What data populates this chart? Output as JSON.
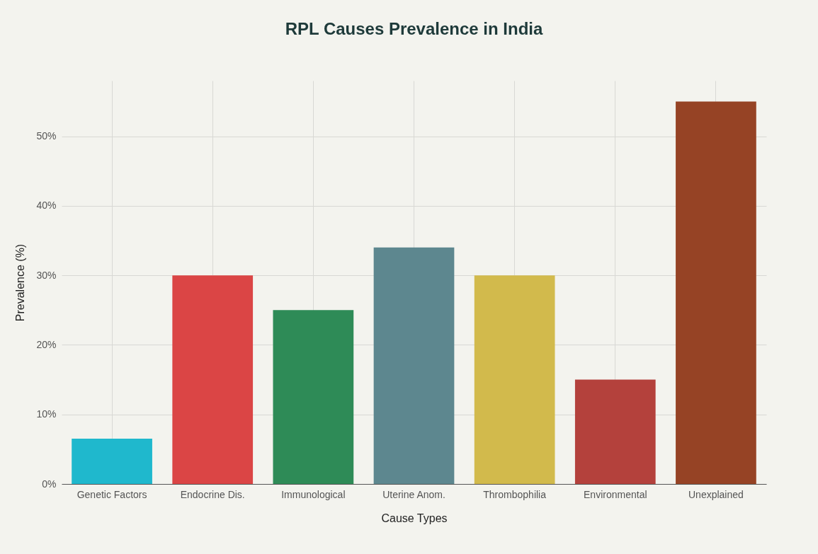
{
  "chart_data": {
    "type": "bar",
    "title": "RPL Causes Prevalence in India",
    "xlabel": "Cause Types",
    "ylabel": "Prevalence (%)",
    "categories": [
      "Genetic Factors",
      "Endocrine Dis.",
      "Immunological",
      "Uterine Anom.",
      "Thrombophilia",
      "Environmental",
      "Unexplained"
    ],
    "values": [
      6.5,
      30,
      25,
      34,
      30,
      15,
      55
    ],
    "colors": [
      "#1fb8cd",
      "#db4545",
      "#2e8b57",
      "#5d878f",
      "#d2ba4c",
      "#b4413c",
      "#964325"
    ],
    "ylim": [
      0,
      58
    ],
    "yticks": [
      {
        "value": 0,
        "label": "0%"
      },
      {
        "value": 10,
        "label": "10%"
      },
      {
        "value": 20,
        "label": "20%"
      },
      {
        "value": 30,
        "label": "30%"
      },
      {
        "value": 40,
        "label": "40%"
      },
      {
        "value": 50,
        "label": "50%"
      }
    ],
    "grid": true
  }
}
